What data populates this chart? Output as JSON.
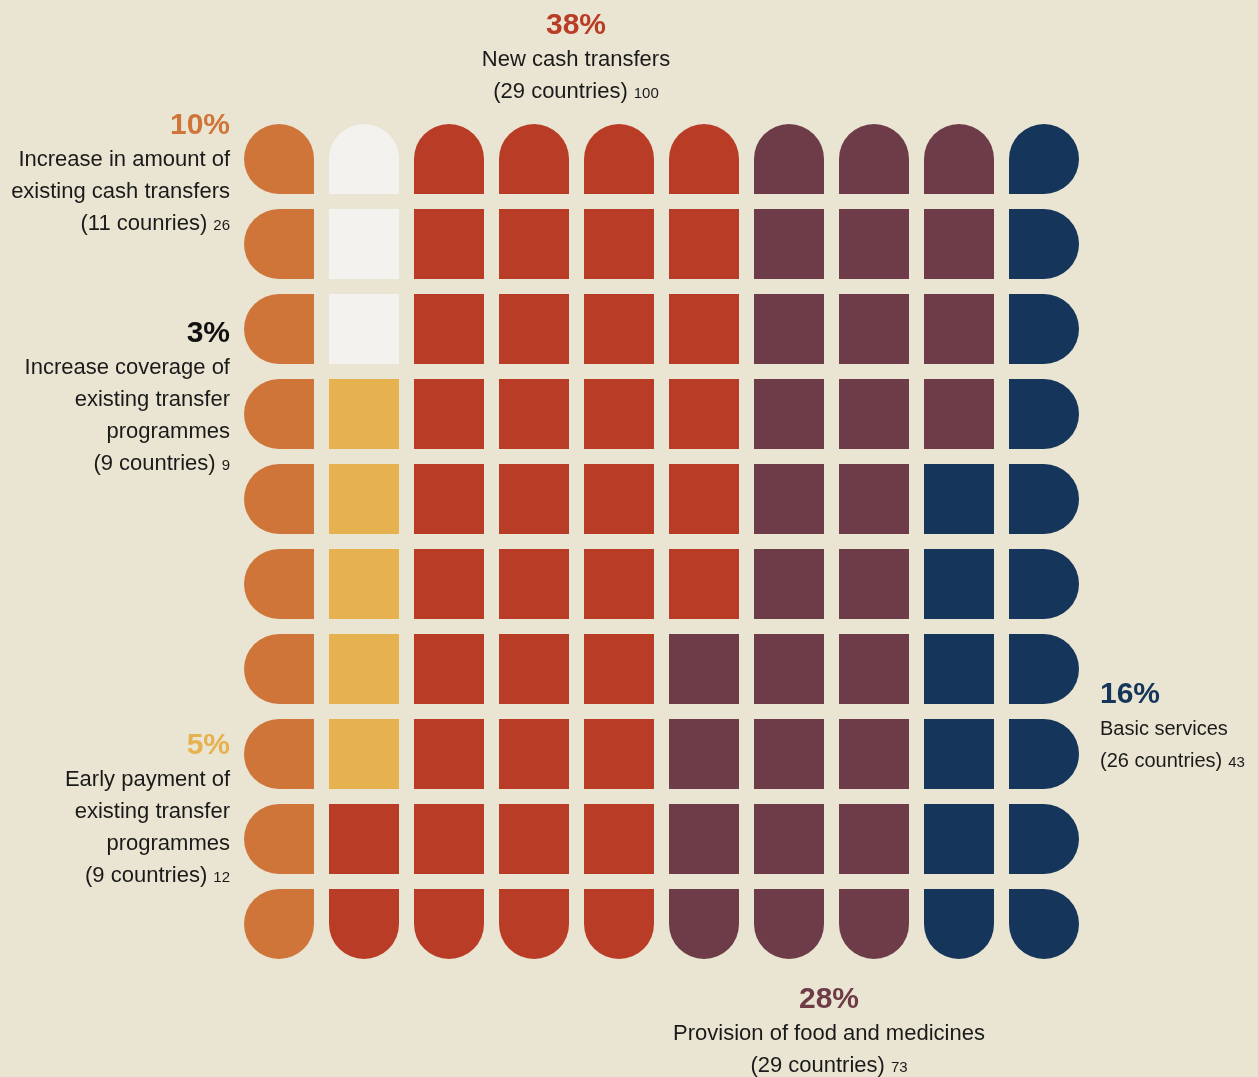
{
  "chart_data": {
    "type": "other",
    "categories": [
      "Increase in amount of\nexisting cash transfers",
      "Increase coverage of\nexisting transfer\nprogrammes",
      "Early payment of\nexisting transfer\nprogrammes",
      "New cash transfers",
      "Provision of food and medicines",
      "Basic services"
    ],
    "values": [
      10,
      3,
      5,
      38,
      28,
      16
    ],
    "value_labels": [
      "10%",
      "3%",
      "5%",
      "38%",
      "28%",
      "16%"
    ],
    "colors": [
      "#d0753a",
      "#f3f2ee",
      "#e6b14f",
      "#b93c26",
      "#6e3c48",
      "#15355a"
    ],
    "annotations": [
      "(11 counries)",
      "26",
      "(9 countries)",
      "9",
      "(9 countries)",
      "12",
      "(29 countries)",
      "100",
      "(29 countries)",
      "73",
      "(26 countries)",
      "43"
    ]
  }
}
